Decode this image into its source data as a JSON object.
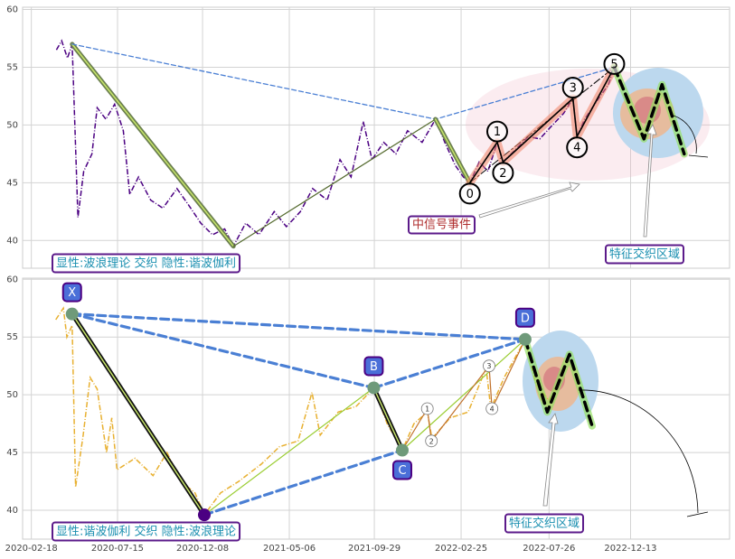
{
  "chart_data": [
    {
      "type": "line",
      "grid": true,
      "xtick_labels": false,
      "xlim": [
        "2020-02-03",
        "2023-06-01"
      ],
      "ylim": [
        37.6,
        60.2
      ],
      "yticks": [
        40,
        45,
        50,
        55,
        60
      ],
      "xticks": [
        "2020-02-18",
        "2020-07-15",
        "2020-12-08",
        "2021-05-06",
        "2021-09-29",
        "2022-02-25",
        "2022-07-26",
        "2022-12-13"
      ],
      "price": {
        "color": "#4b0082",
        "x": [
          "2020-04-01",
          "2020-04-10",
          "2020-04-20",
          "2020-04-28",
          "2020-05-08",
          "2020-05-18",
          "2020-06-01",
          "2020-06-10",
          "2020-06-25",
          "2020-07-10",
          "2020-07-25",
          "2020-08-05",
          "2020-08-20",
          "2020-09-10",
          "2020-10-01",
          "2020-10-25",
          "2020-11-15",
          "2020-12-05",
          "2020-12-25",
          "2021-01-15",
          "2021-01-30",
          "2021-02-20",
          "2021-03-15",
          "2021-04-10",
          "2021-05-01",
          "2021-05-25",
          "2021-06-15",
          "2021-07-10",
          "2021-08-01",
          "2021-08-20",
          "2021-09-10",
          "2021-09-25",
          "2021-10-15",
          "2021-11-05",
          "2021-11-25",
          "2021-12-20",
          "2022-01-12",
          "2022-01-28",
          "2022-02-15",
          "2022-03-01",
          "2022-03-12",
          "2022-03-28",
          "2022-04-12",
          "2022-04-28",
          "2022-05-08",
          "2022-05-28",
          "2022-06-20",
          "2022-07-10",
          "2022-08-01",
          "2022-08-20",
          "2022-09-05",
          "2022-09-12",
          "2022-09-25",
          "2022-10-15",
          "2022-11-05",
          "2022-11-15"
        ],
        "values": [
          56.5,
          57.3,
          55.8,
          57.0,
          42.0,
          46.0,
          47.5,
          51.5,
          50.5,
          51.8,
          49.5,
          44.0,
          45.5,
          43.5,
          42.8,
          44.5,
          43.0,
          41.5,
          40.5,
          41.0,
          39.5,
          41.5,
          40.5,
          42.5,
          41.2,
          42.5,
          44.5,
          43.5,
          47.0,
          45.5,
          50.3,
          47.0,
          48.5,
          47.5,
          49.5,
          48.5,
          50.5,
          48.5,
          46.5,
          45.5,
          45.0,
          46.8,
          46.0,
          48.5,
          46.8,
          47.8,
          49.0,
          48.8,
          50.0,
          51.0,
          52.3,
          49.0,
          50.5,
          52.0,
          53.5,
          55.0
        ]
      },
      "legs": [
        {
          "style": "main",
          "color": "#6b7f4f",
          "x": [
            "2020-04-28",
            "2021-01-30"
          ],
          "values": [
            57.0,
            39.5
          ]
        },
        {
          "style": "thin",
          "color": "#556b2f",
          "x": [
            "2021-01-30",
            "2022-01-12"
          ],
          "values": [
            39.5,
            50.5
          ]
        },
        {
          "style": "dashed",
          "color": "#4a7fd4",
          "x": [
            "2020-04-28",
            "2022-01-12",
            "2022-11-15"
          ],
          "values": [
            57.0,
            50.5,
            55.0
          ]
        },
        {
          "style": "main",
          "color": "#6b7f4f",
          "x": [
            "2022-01-12",
            "2022-03-12"
          ],
          "values": [
            50.5,
            45.0
          ]
        },
        {
          "style": "channel",
          "color": "#000000",
          "x": [
            "2022-03-12",
            "2022-11-15"
          ],
          "values": [
            45.0,
            55.0
          ]
        },
        {
          "style": "wave",
          "color": "#000000",
          "x": [
            "2022-03-12",
            "2022-04-28",
            "2022-05-08",
            "2022-09-05",
            "2022-09-12",
            "2022-11-15"
          ],
          "values": [
            45.0,
            48.5,
            46.8,
            52.3,
            49.0,
            55.0
          ]
        },
        {
          "style": "future",
          "color": "#000000",
          "x": [
            "2022-11-15",
            "2023-01-05",
            "2023-02-05",
            "2023-03-15"
          ],
          "values": [
            55.0,
            48.8,
            53.5,
            47.5
          ]
        }
      ],
      "labels": [
        {
          "marker": "circle",
          "points": [
            {
              "label": "0",
              "x": "2022-03-12",
              "value": 45.0
            },
            {
              "label": "1",
              "x": "2022-04-28",
              "value": 48.5
            },
            {
              "label": "2",
              "x": "2022-05-08",
              "value": 46.8
            },
            {
              "label": "3",
              "x": "2022-09-05",
              "value": 52.3
            },
            {
              "label": "4",
              "x": "2022-09-12",
              "value": 49.0
            },
            {
              "label": "5",
              "x": "2022-11-15",
              "value": 55.0
            }
          ]
        }
      ],
      "notes": [
        "显性:波浪理论 交织 隐性:谐波伽利",
        "中信号事件",
        "特征交织区域"
      ]
    },
    {
      "type": "line",
      "grid": true,
      "xtick_labels": true,
      "xlim": [
        "2020-02-03",
        "2023-06-01"
      ],
      "ylim": [
        37.5,
        60.1
      ],
      "yticks": [
        40,
        45,
        50,
        55,
        60
      ],
      "xticks": [
        "2020-02-18",
        "2020-07-15",
        "2020-12-08",
        "2021-05-06",
        "2021-09-29",
        "2022-02-25",
        "2022-07-26",
        "2022-12-13"
      ],
      "price": {
        "color": "#e8b030",
        "x": [
          "2020-03-31",
          "2020-04-13",
          "2020-04-19",
          "2020-04-28",
          "2020-05-04",
          "2020-05-17",
          "2020-05-29",
          "2020-06-10",
          "2020-06-26",
          "2020-07-05",
          "2020-07-14",
          "2020-08-14",
          "2020-09-14",
          "2020-10-08",
          "2020-11-01",
          "2020-11-25",
          "2020-12-11",
          "2021-01-08",
          "2021-02-08",
          "2021-03-19",
          "2021-04-19",
          "2021-05-21",
          "2021-06-14",
          "2021-06-28",
          "2021-07-29",
          "2021-08-29",
          "2021-09-28",
          "2021-10-21",
          "2021-11-16",
          "2021-12-06",
          "2021-12-29",
          "2022-01-06",
          "2022-02-06",
          "2022-03-09",
          "2022-04-09",
          "2022-04-17",
          "2022-05-10",
          "2022-06-15",
          "2022-07-03",
          "2022-07-26",
          "2022-08-18"
        ],
        "values": [
          56.5,
          57.5,
          55.0,
          56.0,
          42.0,
          46.5,
          51.5,
          50.5,
          45.0,
          48.0,
          43.5,
          44.5,
          43.0,
          45.0,
          42.5,
          41.5,
          39.6,
          41.5,
          42.5,
          44.0,
          45.5,
          46.0,
          50.2,
          46.5,
          48.5,
          49.0,
          50.6,
          47.5,
          45.2,
          47.5,
          48.5,
          46.2,
          48.0,
          48.5,
          52.3,
          48.8,
          51.5,
          54.8,
          51.0,
          49.5,
          51.5
        ]
      },
      "legs": [
        {
          "style": "dashed-bold",
          "color": "#4a7fd4",
          "x": [
            "2020-04-28",
            "2021-09-28"
          ],
          "values": [
            57.0,
            50.6
          ]
        },
        {
          "style": "dashed-bold",
          "color": "#4a7fd4",
          "x": [
            "2020-04-28",
            "2022-06-15"
          ],
          "values": [
            57.0,
            54.8
          ]
        },
        {
          "style": "dashed-bold",
          "color": "#4a7fd4",
          "x": [
            "2020-12-11",
            "2021-11-16"
          ],
          "values": [
            39.6,
            45.2
          ]
        },
        {
          "style": "dashed-bold",
          "color": "#4a7fd4",
          "x": [
            "2021-09-28",
            "2022-06-15"
          ],
          "values": [
            50.6,
            54.8
          ]
        },
        {
          "style": "main",
          "color": "#111111",
          "x": [
            "2020-04-28",
            "2020-12-11"
          ],
          "values": [
            57.0,
            39.6
          ]
        },
        {
          "style": "thin",
          "color": "#9acd32",
          "x": [
            "2020-12-11",
            "2021-09-28"
          ],
          "values": [
            39.6,
            50.6
          ]
        },
        {
          "style": "main",
          "color": "#111111",
          "x": [
            "2021-09-28",
            "2021-11-16"
          ],
          "values": [
            50.6,
            45.2
          ]
        },
        {
          "style": "thin",
          "color": "#9acd32",
          "x": [
            "2021-11-16",
            "2022-06-15"
          ],
          "values": [
            45.2,
            54.8
          ]
        },
        {
          "style": "thin",
          "color": "#c0702a",
          "x": [
            "2021-11-16",
            "2021-12-29",
            "2022-01-05",
            "2022-04-14",
            "2022-04-19",
            "2022-06-15"
          ],
          "values": [
            45.2,
            48.8,
            46.0,
            52.5,
            48.8,
            54.8
          ]
        },
        {
          "style": "future",
          "color": "#000000",
          "x": [
            "2022-06-15",
            "2022-07-23",
            "2022-08-30",
            "2022-10-08"
          ],
          "values": [
            54.8,
            48.5,
            53.5,
            47.3
          ]
        }
      ],
      "labels": [
        {
          "marker": "box",
          "points": [
            {
              "label": "X",
              "x": "2020-04-28",
              "value": 57.0
            },
            {
              "x": "2020-12-11",
              "value": 39.6
            },
            {
              "label": "B",
              "x": "2021-09-28",
              "value": 50.6
            },
            {
              "label": "C",
              "x": "2021-11-16",
              "value": 45.2
            },
            {
              "label": "D",
              "x": "2022-06-15",
              "value": 54.8
            }
          ]
        },
        {
          "marker": "small",
          "points": [
            {
              "label": "1",
              "x": "2021-12-29",
              "value": 48.8
            },
            {
              "label": "2",
              "x": "2022-01-05",
              "value": 46.0
            },
            {
              "label": "3",
              "x": "2022-04-14",
              "value": 52.5
            },
            {
              "label": "4",
              "x": "2022-04-19",
              "value": 48.8
            }
          ]
        }
      ],
      "notes": [
        "显性:谐波伽利 交织 隐性:波浪理论",
        "特征交织区域"
      ]
    }
  ]
}
